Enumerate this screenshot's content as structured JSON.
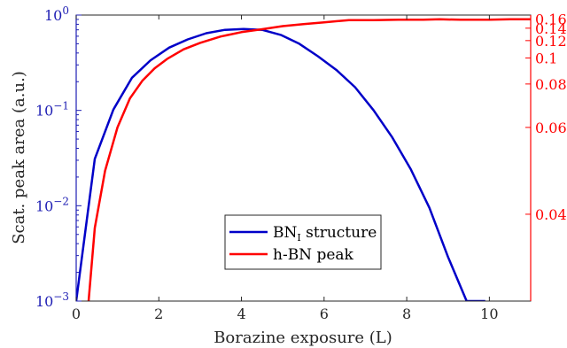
{
  "chart_data": {
    "type": "line",
    "xlabel": "Borazine exposure (L)",
    "ylabel_left": "Scat. peak area (a.u.)",
    "ylabel_right": "",
    "xlim": [
      0,
      11
    ],
    "ylim_left": [
      0.001,
      1
    ],
    "ylim_right": [
      0.03,
      0.17
    ],
    "yscale_left": "log",
    "yscale_right": "reciprocal",
    "grid": false,
    "legend_position": "bottom-center",
    "x_ticks": [
      "0",
      "2",
      "4",
      "6",
      "8",
      "10"
    ],
    "y_left_ticks": [
      {
        "value": 1,
        "base": "10",
        "exp": "0"
      },
      {
        "value": 0.1,
        "base": "10",
        "exp": "−1"
      },
      {
        "value": 0.01,
        "base": "10",
        "exp": "−2"
      },
      {
        "value": 0.001,
        "base": "10",
        "exp": "−3"
      }
    ],
    "y_right_ticks": [
      "0.16",
      "0.14",
      "0.12",
      "0.1",
      "0.08",
      "0.06",
      "0.04"
    ],
    "left_axis_color": "#1f1fb4",
    "right_axis_color": "#ff0000",
    "series": [
      {
        "name": "BN",
        "name_subscript": "I",
        "name_suffix": " structure",
        "color": "#0000c8",
        "axis": "left",
        "x": [
          0,
          0.45,
          0.9,
          1.35,
          1.8,
          2.25,
          2.7,
          3.15,
          3.6,
          4.05,
          4.5,
          4.95,
          5.4,
          5.85,
          6.3,
          6.75,
          7.2,
          7.65,
          8.1,
          8.55,
          9.0,
          9.45,
          9.9
        ],
        "y": [
          0.001,
          0.031,
          0.102,
          0.22,
          0.335,
          0.455,
          0.555,
          0.645,
          0.7,
          0.715,
          0.7,
          0.62,
          0.5,
          0.37,
          0.265,
          0.175,
          0.1,
          0.052,
          0.024,
          0.0095,
          0.0029,
          0.001,
          0.001
        ]
      },
      {
        "name": "h-BN peak",
        "color": "#ff0000",
        "axis": "right",
        "x": [
          0.3,
          0.45,
          0.7,
          1.0,
          1.3,
          1.6,
          1.9,
          2.2,
          2.6,
          3.0,
          3.5,
          4.0,
          4.5,
          5.0,
          5.5,
          6.0,
          6.6,
          7.2,
          7.8,
          8.4,
          8.8,
          9.3,
          10.0,
          10.5,
          11.0
        ],
        "y": [
          0.03,
          0.038,
          0.048,
          0.06,
          0.072,
          0.082,
          0.091,
          0.099,
          0.109,
          0.117,
          0.126,
          0.133,
          0.138,
          0.144,
          0.148,
          0.152,
          0.157,
          0.157,
          0.158,
          0.158,
          0.159,
          0.158,
          0.158,
          0.159,
          0.159
        ]
      }
    ]
  }
}
